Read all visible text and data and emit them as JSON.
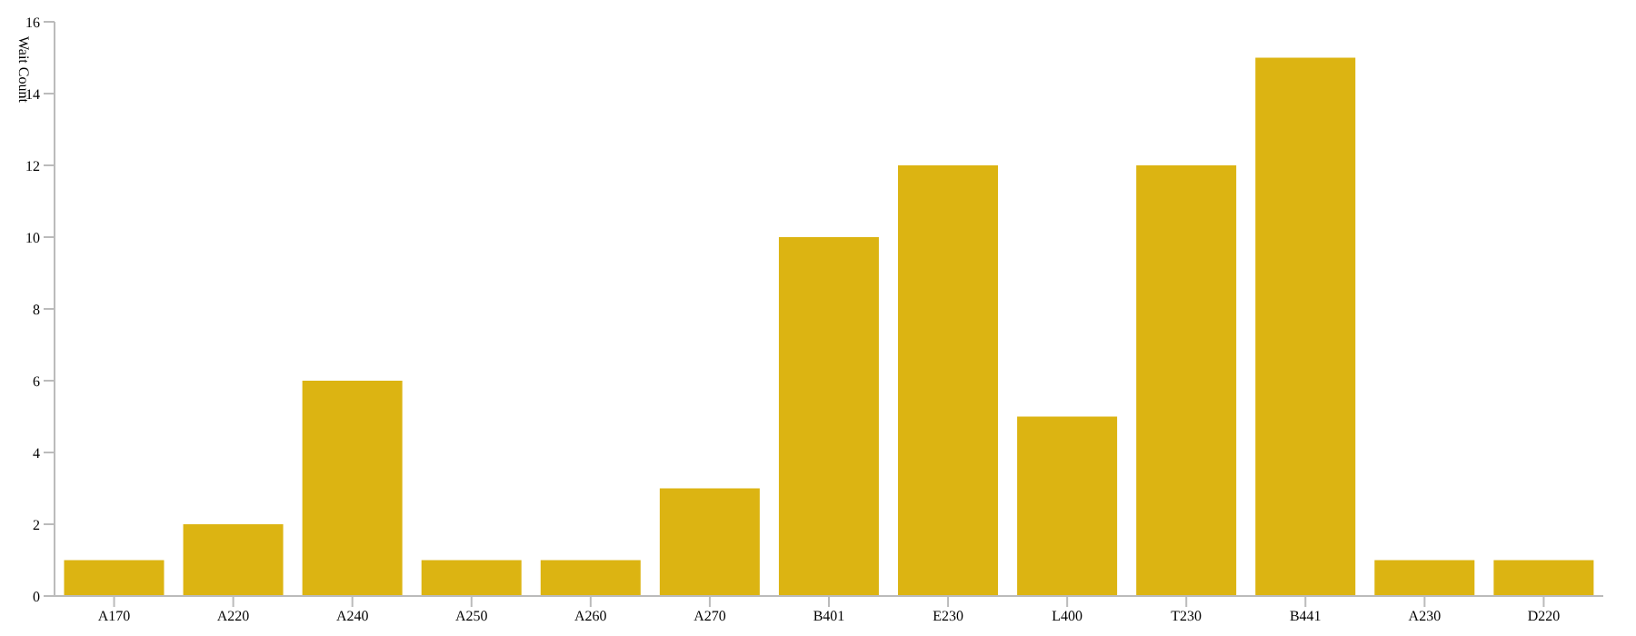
{
  "chart_data": {
    "type": "bar",
    "ylabel": "Wait Count",
    "categories": [
      "A170",
      "A220",
      "A240",
      "A250",
      "A260",
      "A270",
      "B401",
      "E230",
      "L400",
      "T230",
      "B441",
      "A230",
      "D220"
    ],
    "values": [
      1,
      2,
      6,
      1,
      1,
      3,
      10,
      12,
      5,
      12,
      15,
      1,
      1
    ],
    "color": "#dcb412",
    "ylim": [
      0,
      16
    ],
    "yticks": [
      0,
      2,
      4,
      6,
      8,
      10,
      12,
      14,
      16
    ],
    "grid": false
  }
}
